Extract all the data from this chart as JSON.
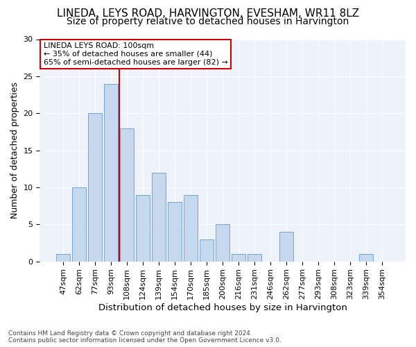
{
  "title": "LINEDA, LEYS ROAD, HARVINGTON, EVESHAM, WR11 8LZ",
  "subtitle": "Size of property relative to detached houses in Harvington",
  "xlabel": "Distribution of detached houses by size in Harvington",
  "ylabel": "Number of detached properties",
  "categories": [
    "47sqm",
    "62sqm",
    "77sqm",
    "93sqm",
    "108sqm",
    "124sqm",
    "139sqm",
    "154sqm",
    "170sqm",
    "185sqm",
    "200sqm",
    "216sqm",
    "231sqm",
    "246sqm",
    "262sqm",
    "277sqm",
    "293sqm",
    "308sqm",
    "323sqm",
    "339sqm",
    "354sqm"
  ],
  "values": [
    1,
    10,
    20,
    24,
    18,
    9,
    12,
    8,
    9,
    3,
    5,
    1,
    1,
    0,
    4,
    0,
    0,
    0,
    0,
    1,
    0
  ],
  "bar_color": "#c5d8ee",
  "bar_edgecolor": "#6fa8d4",
  "vline_x_index": 3,
  "vline_color": "#cc0000",
  "annotation_line1": "LINEDA LEYS ROAD: 100sqm",
  "annotation_line2": "← 35% of detached houses are smaller (44)",
  "annotation_line3": "65% of semi-detached houses are larger (82) →",
  "annotation_box_color": "#cc0000",
  "annotation_box_fill": "#ffffff",
  "ylim": [
    0,
    30
  ],
  "yticks": [
    0,
    5,
    10,
    15,
    20,
    25,
    30
  ],
  "title_fontsize": 11,
  "subtitle_fontsize": 10,
  "xlabel_fontsize": 9.5,
  "ylabel_fontsize": 9,
  "tick_fontsize": 8,
  "annot_fontsize": 8,
  "footer_line1": "Contains HM Land Registry data © Crown copyright and database right 2024.",
  "footer_line2": "Contains public sector information licensed under the Open Government Licence v3.0.",
  "background_color": "#ffffff",
  "plot_background": "#eef2fa",
  "grid_color": "#ffffff"
}
